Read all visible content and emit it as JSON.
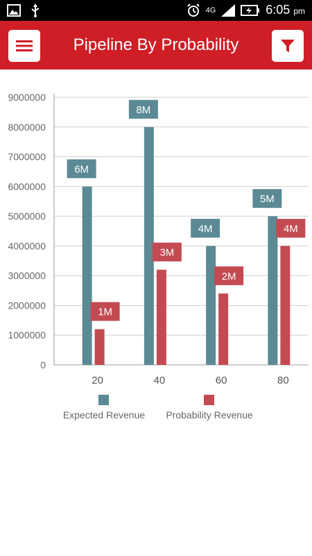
{
  "status_bar": {
    "time": "6:05",
    "ampm": "pm",
    "network": "4G",
    "icons": [
      "image-icon",
      "usb-icon",
      "alarm-icon",
      "signal-icon",
      "battery-charging-icon"
    ]
  },
  "header": {
    "title": "Pipeline By Probability",
    "menu_icon": "hamburger-icon",
    "filter_icon": "filter-icon",
    "background": "#cf1e26"
  },
  "chart_data": {
    "type": "bar",
    "categories": [
      "20",
      "40",
      "60",
      "80"
    ],
    "series": [
      {
        "name": "Expected Revenue",
        "color": "#5b8a94",
        "values": [
          6000000,
          8000000,
          4000000,
          5000000
        ],
        "labels": [
          "6M",
          "8M",
          "4M",
          "5M"
        ]
      },
      {
        "name": "Probability Revenue",
        "color": "#c44a52",
        "values": [
          1200000,
          3200000,
          2400000,
          4000000
        ],
        "labels": [
          "1M",
          "3M",
          "2M",
          "4M"
        ]
      }
    ],
    "yticks": [
      0,
      1000000,
      2000000,
      3000000,
      4000000,
      5000000,
      6000000,
      7000000,
      8000000,
      9000000
    ],
    "ylim": [
      0,
      9000000
    ],
    "grid": true,
    "legend": "bottom"
  }
}
